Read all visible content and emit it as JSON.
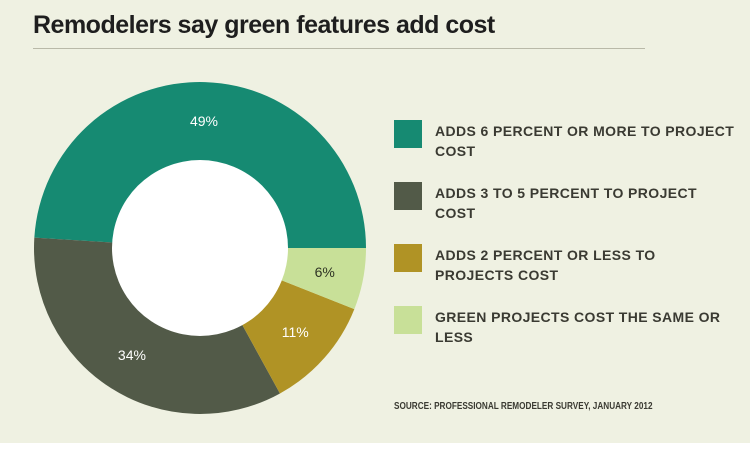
{
  "chart_data": {
    "type": "pie",
    "title": "Remodelers say green features add cost",
    "slices": [
      {
        "label": "ADDS 6 PERCENT OR MORE TO PROJECT COST",
        "value": 49,
        "value_label": "49%",
        "color": "#168a72"
      },
      {
        "label": "ADDS 3 TO 5 PERCENT TO PROJECT COST",
        "value": 34,
        "value_label": "34%",
        "color": "#525a48"
      },
      {
        "label": "ADDS 2 PERCENT OR LESS TO PROJECTS COST",
        "value": 11,
        "value_label": "11%",
        "color": "#b09325"
      },
      {
        "label": "GREEN PROJECTS COST THE SAME OR LESS",
        "value": 6,
        "value_label": "6%",
        "color": "#c8e098"
      }
    ],
    "legend_position": "right",
    "source": "SOURCE: PROFESSIONAL REMODELER SURVEY, JANUARY 2012"
  },
  "colors": {
    "background": "#eff1e2",
    "hole": "#ffffff",
    "title_text": "#1e1e1e",
    "label_text": "#ffffff"
  }
}
